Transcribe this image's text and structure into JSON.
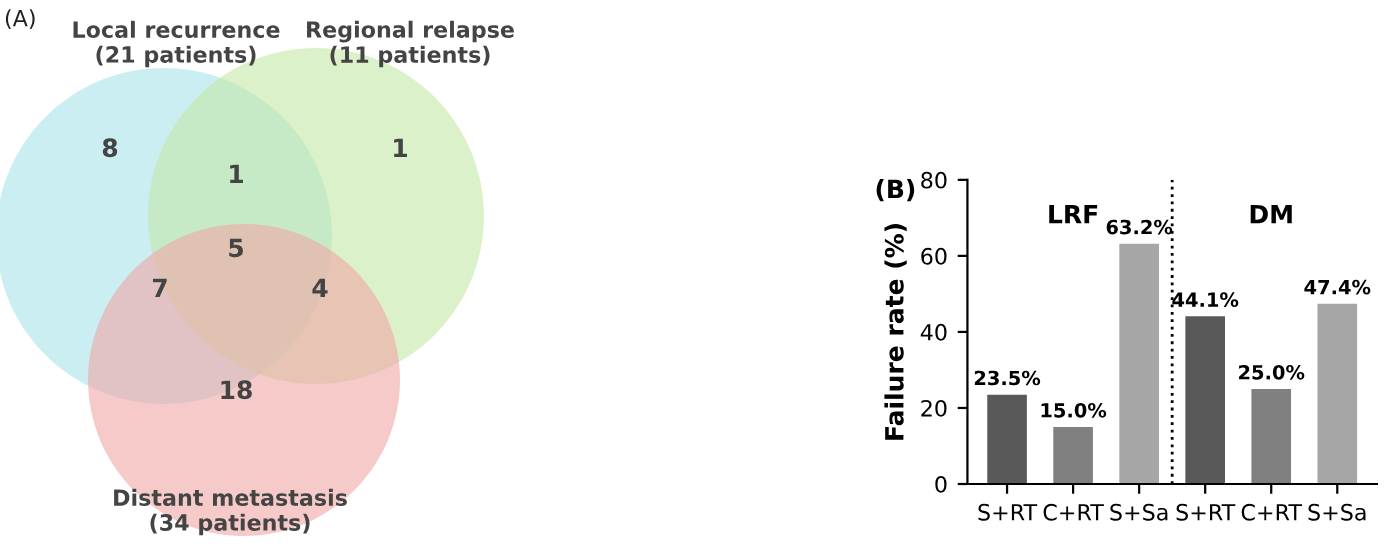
{
  "chart_data": [
    {
      "type": "other",
      "title": "(A)",
      "categories": [
        "Local recurrence\n(21 patients)",
        "Regional relapse\n(11 patients)",
        "Distant metastasis\n(34 patients)"
      ],
      "colors": [
        "#a9e3ea",
        "#c2e8a6",
        "#f2a6a6"
      ],
      "annotations": [
        "8",
        "1",
        "1",
        "5",
        "7",
        "4",
        "18"
      ]
    },
    {
      "type": "bar",
      "title": "(B)",
      "ylabel": "Failure rate (%)",
      "categories": [
        "S+RT",
        "C+RT",
        "S+Sa",
        "S+RT",
        "C+RT",
        "S+Sa"
      ],
      "values": [
        23.5,
        15.0,
        63.2,
        44.1,
        25.0,
        47.4
      ],
      "colors": [
        "#595959",
        "#808080",
        "#a6a6a6",
        "#595959",
        "#808080",
        "#a6a6a6"
      ],
      "value_labels": [
        "23.5%",
        "15.0%",
        "63.2%",
        "44.1%",
        "25.0%",
        "47.4%"
      ],
      "annotations": [
        "LRF",
        "DM"
      ],
      "ylim": [
        0,
        80
      ],
      "yticks": [
        0,
        20,
        40,
        60,
        80
      ],
      "grid": false,
      "legend": false
    }
  ]
}
